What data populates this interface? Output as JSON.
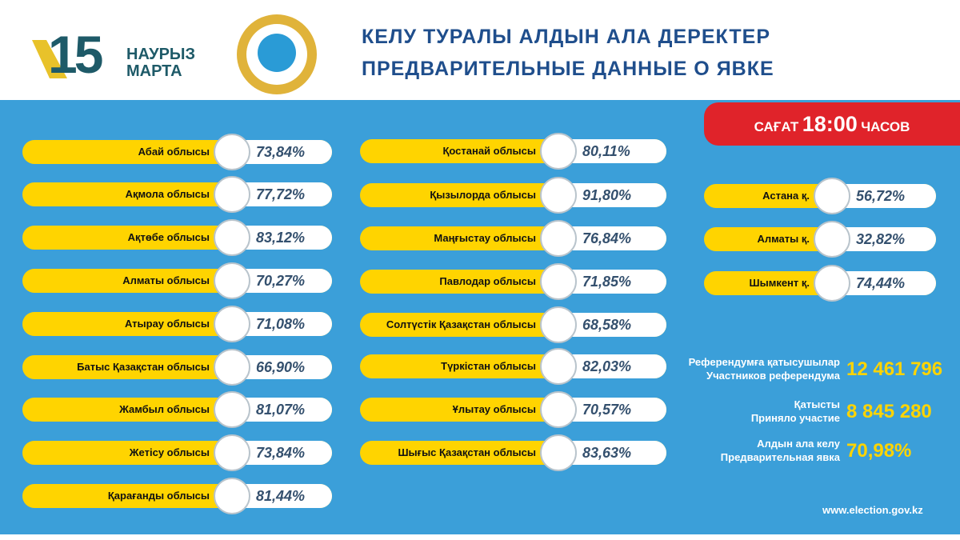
{
  "header": {
    "badge_number": "15",
    "badge_line1": "НАУРЫЗ",
    "badge_line2": "МАРТА",
    "title_line1": "КЕЛУ ТУРАЛЫ АЛДЫН АЛА ДЕРЕКТЕР",
    "title_line2": "ПРЕДВАРИТЕЛЬНЫЕ ДАННЫЕ О ЯВКЕ"
  },
  "time": {
    "before": "САҒАТ",
    "time": "18:00",
    "after": "ЧАСОВ"
  },
  "regions_left": [
    {
      "name": "Абай облысы",
      "turnout": "73,84%"
    },
    {
      "name": "Ақмола облысы",
      "turnout": "77,72%"
    },
    {
      "name": "Ақтөбе облысы",
      "turnout": "83,12%"
    },
    {
      "name": "Алматы облысы",
      "turnout": "70,27%"
    },
    {
      "name": "Атырау облысы",
      "turnout": "71,08%"
    },
    {
      "name": "Батыс Қазақстан облысы",
      "turnout": "66,90%"
    },
    {
      "name": "Жамбыл облысы",
      "turnout": "81,07%"
    },
    {
      "name": "Жетісу облысы",
      "turnout": "73,84%"
    },
    {
      "name": "Қарағанды облысы",
      "turnout": "81,44%"
    }
  ],
  "regions_middle": [
    {
      "name": "Қостанай облысы",
      "turnout": "80,11%"
    },
    {
      "name": "Қызылорда облысы",
      "turnout": "91,80%"
    },
    {
      "name": "Маңғыстау облысы",
      "turnout": "76,84%"
    },
    {
      "name": "Павлодар облысы",
      "turnout": "71,85%"
    },
    {
      "name": "Солтүстік Қазақстан облысы",
      "turnout": "68,58%"
    },
    {
      "name": "Түркістан облысы",
      "turnout": "82,03%"
    },
    {
      "name": "Ұлытау облысы",
      "turnout": "70,57%"
    },
    {
      "name": "Шығыс Қазақстан облысы",
      "turnout": "83,63%"
    }
  ],
  "cities": [
    {
      "name": "Астана қ.",
      "turnout": "56,72%"
    },
    {
      "name": "Алматы қ.",
      "turnout": "32,82%"
    },
    {
      "name": "Шымкент қ.",
      "turnout": "74,44%"
    }
  ],
  "stats": [
    {
      "label_kz": "Референдумға қатысушылар",
      "label_ru": "Участников референдума",
      "value": "12 461 796"
    },
    {
      "label_kz": "Қатысты",
      "label_ru": "Приняло участие",
      "value": "8 845 280"
    },
    {
      "label_kz": "Алдын ала келу",
      "label_ru": "Предварительная явка",
      "value": "70,98%"
    }
  ],
  "footer": {
    "url": "www.election.gov.kz"
  }
}
